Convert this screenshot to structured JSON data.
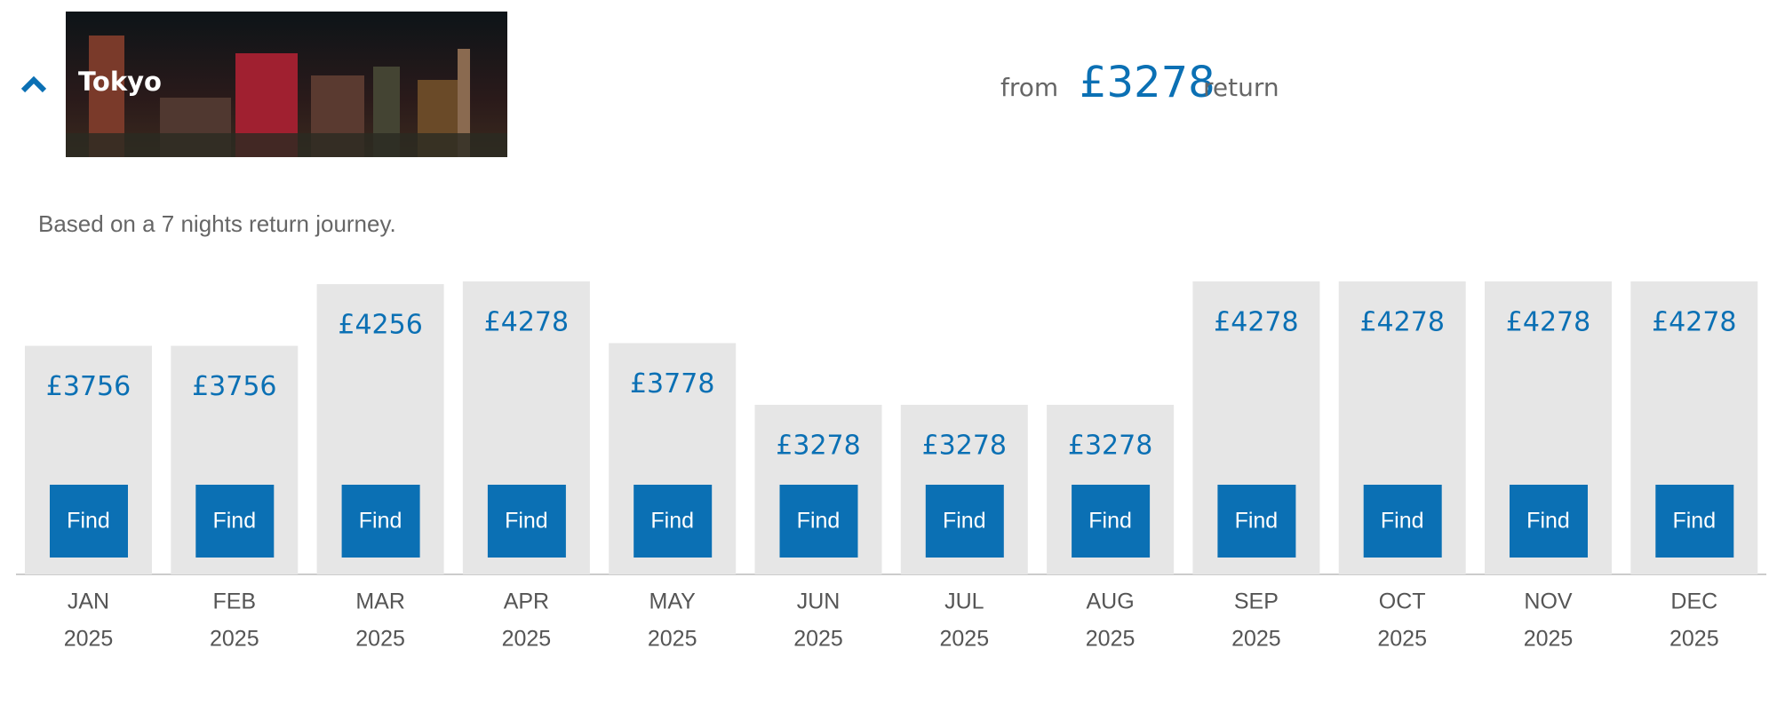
{
  "header": {
    "city": "Tokyo",
    "from": "from",
    "price": "£3278",
    "return": "return"
  },
  "note": "Based on a 7 nights return journey.",
  "button_label": "Find",
  "chart_data": {
    "type": "bar",
    "categories": [
      "JAN",
      "FEB",
      "MAR",
      "APR",
      "MAY",
      "JUN",
      "JUL",
      "AUG",
      "SEP",
      "OCT",
      "NOV",
      "DEC"
    ],
    "years": [
      "2025",
      "2025",
      "2025",
      "2025",
      "2025",
      "2025",
      "2025",
      "2025",
      "2025",
      "2025",
      "2025",
      "2025"
    ],
    "values": [
      3756,
      3756,
      4256,
      4278,
      3778,
      3278,
      3278,
      3278,
      4278,
      4278,
      4278,
      4278
    ],
    "value_labels": [
      "£3756",
      "£3756",
      "£4256",
      "£4278",
      "£3778",
      "£3278",
      "£3278",
      "£3278",
      "£4278",
      "£4278",
      "£4278",
      "£4278"
    ],
    "color": "#e6e6e6"
  }
}
